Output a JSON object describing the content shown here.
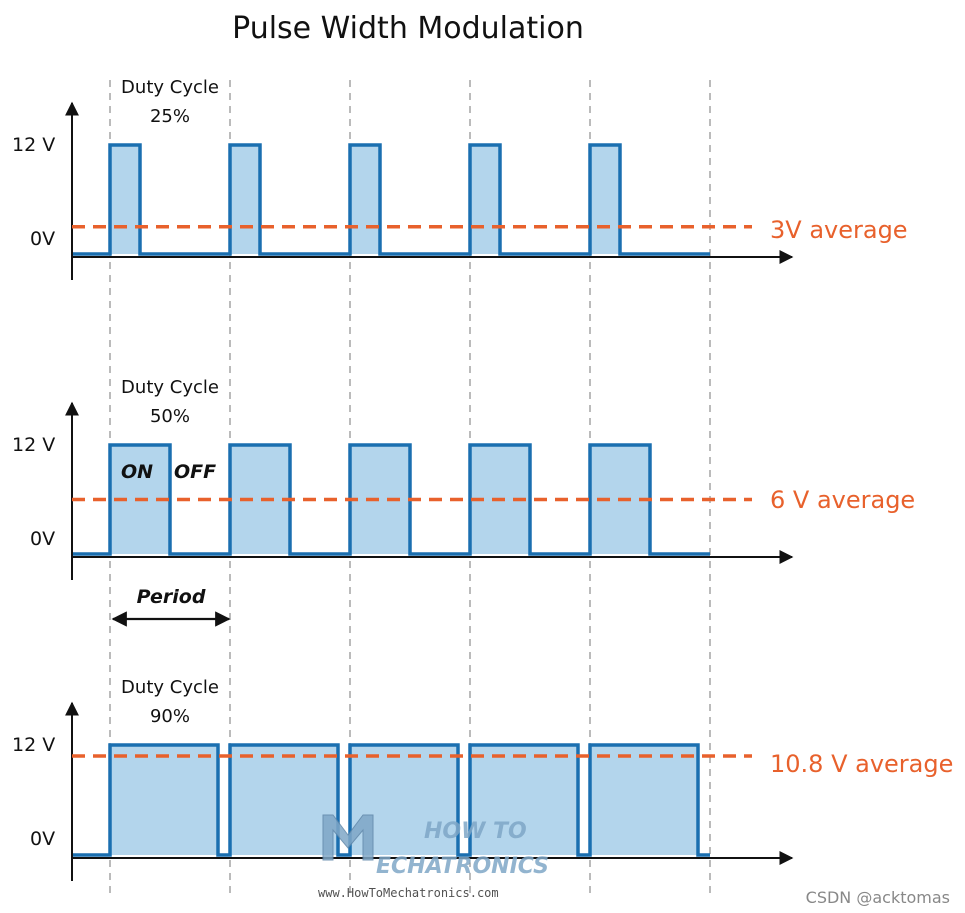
{
  "title": "Pulse Width Modulation",
  "colors": {
    "signal": "#1a6fb0",
    "fill": "#b3d5ec",
    "average": "#e8612c",
    "axis": "#111111",
    "grid": "#777777",
    "logo": "#7fa7c7"
  },
  "chart_data": [
    {
      "type": "line",
      "name": "pwm-25",
      "duty_label_line1": "Duty Cycle",
      "duty_label_line2": "25%",
      "duty_cycle": 0.25,
      "y_high_label": "12 V",
      "y_low_label": "0V",
      "high_value": 12,
      "low_value": 0,
      "periods": 5,
      "average_value": 3,
      "average_label": "3V average"
    },
    {
      "type": "line",
      "name": "pwm-50",
      "duty_label_line1": "Duty Cycle",
      "duty_label_line2": "50%",
      "duty_cycle": 0.5,
      "y_high_label": "12 V",
      "y_low_label": "0V",
      "high_value": 12,
      "low_value": 0,
      "periods": 5,
      "average_value": 6,
      "average_label": "6 V average",
      "on_label": "ON",
      "off_label": "OFF",
      "period_label": "Period"
    },
    {
      "type": "line",
      "name": "pwm-90",
      "duty_label_line1": "Duty Cycle",
      "duty_label_line2": "90%",
      "duty_cycle": 0.9,
      "y_high_label": "12 V",
      "y_low_label": "0V",
      "high_value": 12,
      "low_value": 0,
      "periods": 5,
      "average_value": 10.8,
      "average_label": "10.8 V average"
    }
  ],
  "logo": {
    "line1": "HOW TO",
    "line2": "ECHATRONICS",
    "url": "www.HowToMechatronics.com"
  },
  "credit": "CSDN @acktomas"
}
